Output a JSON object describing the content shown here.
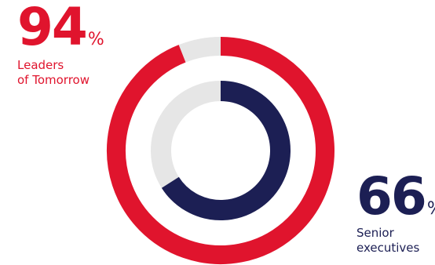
{
  "colors": {
    "outer": "#e0142d",
    "inner": "#1c1f54",
    "track": "#e6e6e6"
  },
  "chart_data": {
    "type": "pie",
    "title": "",
    "series": [
      {
        "name": "Leaders of Tomorrow",
        "value": 94,
        "display_value": "94",
        "unit": "%",
        "label_lines": [
          "Leaders",
          "of Tomorrow"
        ],
        "color": "#e0142d",
        "ring": "outer"
      },
      {
        "name": "Senior executives",
        "value": 66,
        "display_value": "66",
        "unit": "%",
        "label_lines": [
          "Senior",
          "executives"
        ],
        "color": "#1c1f54",
        "ring": "inner"
      }
    ],
    "max": 100
  }
}
